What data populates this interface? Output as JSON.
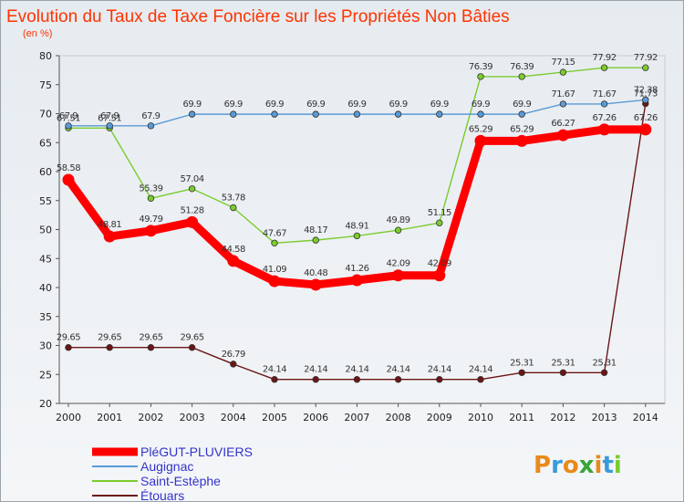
{
  "chart_data": {
    "type": "line",
    "title": "Evolution du Taux de Taxe Foncière sur les Propriétés Non Bâties",
    "subtitle": "(en %)",
    "x": [
      "2000",
      "2001",
      "2002",
      "2003",
      "2004",
      "2005",
      "2006",
      "2007",
      "2008",
      "2009",
      "2010",
      "2011",
      "2012",
      "2013",
      "2014"
    ],
    "ylim": [
      20,
      80
    ],
    "yticks": [
      "20",
      "25",
      "30",
      "35",
      "40",
      "45",
      "50",
      "55",
      "60",
      "65",
      "70",
      "75",
      "80"
    ],
    "series": [
      {
        "name": "Étouars",
        "color": "#6b1515",
        "values": [
          29.65,
          29.65,
          29.65,
          29.65,
          26.79,
          24.14,
          24.14,
          24.14,
          24.14,
          24.14,
          24.14,
          25.31,
          25.31,
          25.31,
          71.73
        ],
        "labels": [
          "29.65",
          "29.65",
          "29.65",
          "29.65",
          "26.79",
          "24.14",
          "24.14",
          "24.14",
          "24.14",
          "24.14",
          "24.14",
          "25.31",
          "25.31",
          "25.31",
          "71.73"
        ]
      },
      {
        "name": "Saint-Estèphe",
        "color": "#7acc2e",
        "values": [
          67.51,
          67.51,
          55.39,
          57.04,
          53.78,
          47.67,
          48.17,
          48.91,
          49.89,
          51.15,
          76.39,
          76.39,
          77.15,
          77.92,
          77.92
        ],
        "labels": [
          "67.51",
          "67.51",
          "55.39",
          "57.04",
          "53.78",
          "47.67",
          "48.17",
          "48.91",
          "49.89",
          "51.15",
          "76.39",
          "76.39",
          "77.15",
          "77.92",
          "77.92"
        ]
      },
      {
        "name": "Augignac",
        "color": "#5a9ad6",
        "values": [
          67.9,
          67.9,
          67.9,
          69.9,
          69.9,
          69.9,
          69.9,
          69.9,
          69.9,
          69.9,
          69.9,
          69.9,
          71.67,
          71.67,
          72.38
        ],
        "labels": [
          "67.9",
          "67.9",
          "67.9",
          "69.9",
          "69.9",
          "69.9",
          "69.9",
          "69.9",
          "69.9",
          "69.9",
          "69.9",
          "69.9",
          "71.67",
          "71.67",
          "72.38"
        ]
      },
      {
        "name": "PléGUT-PLUVIERS",
        "color": "#ff0000",
        "values": [
          58.58,
          48.81,
          49.79,
          51.28,
          44.58,
          41.09,
          40.48,
          41.26,
          42.09,
          42.09,
          65.29,
          65.29,
          66.27,
          67.26,
          67.26
        ],
        "labels": [
          "58.58",
          "48.81",
          "49.79",
          "51.28",
          "44.58",
          "41.09",
          "40.48",
          "41.26",
          "42.09",
          "42.09",
          "65.29",
          "65.29",
          "66.27",
          "67.26",
          "67.26"
        ]
      }
    ],
    "legend_order": [
      "PléGUT-PLUVIERS",
      "Augignac",
      "Saint-Estèphe",
      "Étouars"
    ],
    "legend_position": "bottom-left",
    "grid": false
  },
  "brand": {
    "text": "Proxiti",
    "colors": [
      "#e88a1a",
      "#3a9ad9",
      "#e88a1a",
      "#3aa63a",
      "#e88a1a",
      "#3a9ad9",
      "#7acc2e"
    ]
  }
}
